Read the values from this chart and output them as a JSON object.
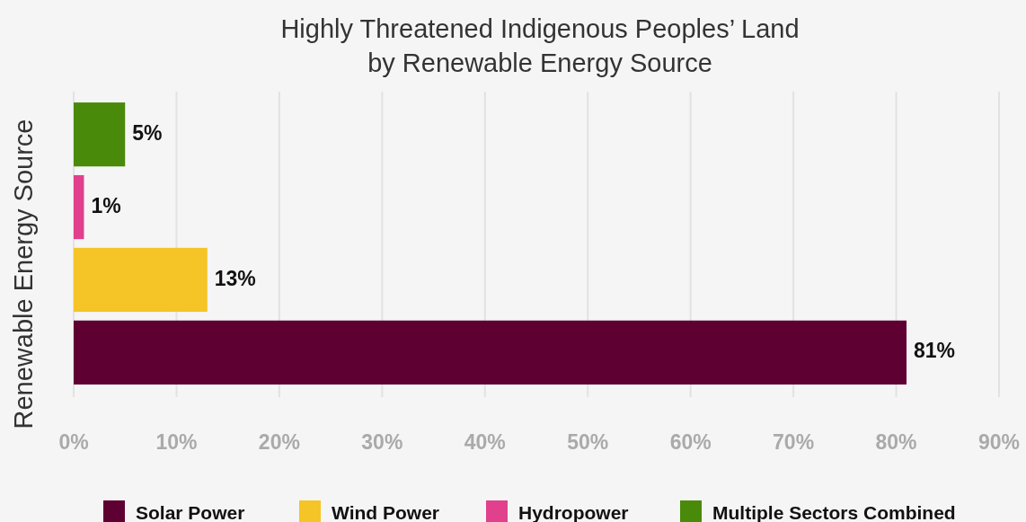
{
  "chart_data": {
    "type": "bar",
    "orientation": "horizontal",
    "title": "Highly Threatened Indigenous Peoples’ Land\nby Renewable Energy Source",
    "ylabel": "Renewable Energy Source",
    "categories": [
      null,
      null,
      null,
      null
    ],
    "series": [
      {
        "name": "Solar Power",
        "color": "#5e0032",
        "values": [
          null,
          null,
          null,
          81
        ],
        "value_labels": [
          null,
          null,
          null,
          "81%"
        ]
      },
      {
        "name": "Wind Power",
        "color": "#f5c426",
        "values": [
          null,
          null,
          13,
          null
        ],
        "value_labels": [
          null,
          null,
          "13%",
          null
        ]
      },
      {
        "name": "Hydropower",
        "color": "#e0408c",
        "values": [
          null,
          1,
          null,
          null
        ],
        "value_labels": [
          null,
          "1%",
          null,
          null
        ]
      },
      {
        "name": "Multiple Sectors Combined",
        "color": "#4a8a0a",
        "values": [
          5,
          null,
          null,
          null
        ],
        "value_labels": [
          "5%",
          null,
          null,
          null
        ]
      }
    ],
    "xlim": [
      0,
      90
    ],
    "xticks": [
      {
        "value": 0,
        "label": "0%"
      },
      {
        "value": 10,
        "label": "10%"
      },
      {
        "value": 20,
        "label": "20%"
      },
      {
        "value": 30,
        "label": "30%"
      },
      {
        "value": 40,
        "label": "40%"
      },
      {
        "value": 50,
        "label": "50%"
      },
      {
        "value": 60,
        "label": "60%"
      },
      {
        "value": 70,
        "label": "70%"
      },
      {
        "value": 80,
        "label": "80%"
      },
      {
        "value": 90,
        "label": "90%"
      }
    ],
    "grid": "x",
    "legend": "bottom"
  }
}
